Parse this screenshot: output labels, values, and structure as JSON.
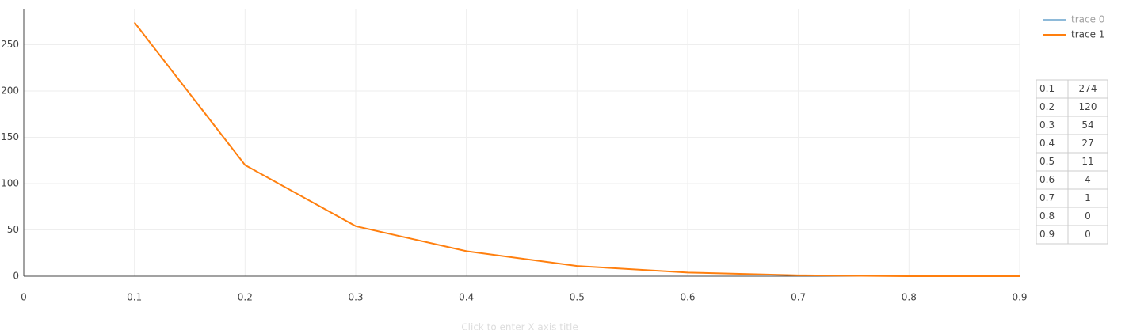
{
  "chart_data": {
    "type": "line",
    "x": [
      0.1,
      0.2,
      0.3,
      0.4,
      0.5,
      0.6,
      0.7,
      0.8,
      0.9
    ],
    "series": [
      {
        "name": "trace 0",
        "color": "#1f77b4",
        "visible": false,
        "values": [
          null,
          null,
          null,
          null,
          null,
          null,
          null,
          null,
          null
        ]
      },
      {
        "name": "trace 1",
        "color": "#ff7f0e",
        "values": [
          274,
          120,
          54,
          27,
          11,
          4,
          1,
          0,
          0
        ]
      }
    ],
    "xlim": [
      0,
      0.9
    ],
    "xticks": [
      0,
      0.1,
      0.2,
      0.3,
      0.4,
      0.5,
      0.6,
      0.7,
      0.8,
      0.9
    ],
    "ylim": [
      0,
      288
    ],
    "yticks": [
      0,
      50,
      100,
      150,
      200,
      250
    ],
    "grid": true,
    "legend": "top-right",
    "xlabel_placeholder": "Click to enter X axis title"
  }
}
